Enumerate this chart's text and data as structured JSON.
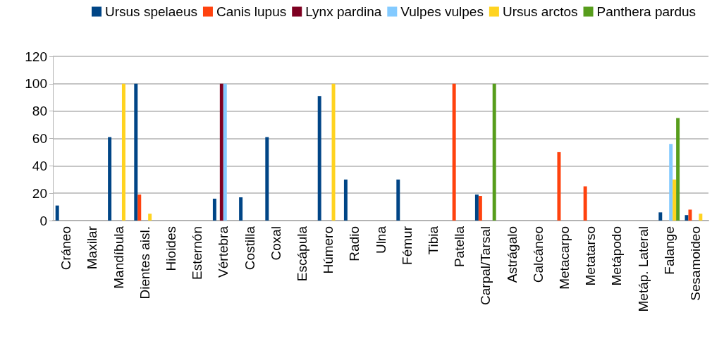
{
  "chart_data": {
    "type": "bar",
    "categories": [
      "Cráneo",
      "Maxilar",
      "Mandíbula",
      "Dientes aisl.",
      "Hioides",
      "Esternón",
      "Vértebra",
      "Costilla",
      "Coxal",
      "Escápula",
      "Húmero",
      "Radio",
      "Ulna",
      "Fémur",
      "Tibia",
      "Patella",
      "Carpal/Tarsal",
      "Astrágalo",
      "Calcáneo",
      "Metacarpo",
      "Metatarso",
      "Metápodo",
      "Metáp. Lateral",
      "Falange",
      "Sesamoideo"
    ],
    "series": [
      {
        "name": "Ursus spelaeus",
        "color": "#004586",
        "values": [
          11,
          null,
          61,
          100,
          null,
          null,
          16,
          17,
          61,
          null,
          91,
          30,
          null,
          30,
          null,
          null,
          19,
          null,
          null,
          null,
          null,
          null,
          null,
          6,
          4
        ]
      },
      {
        "name": "Canis lupus",
        "color": "#ff420e",
        "values": [
          null,
          null,
          null,
          19,
          null,
          null,
          null,
          null,
          null,
          null,
          null,
          null,
          null,
          null,
          null,
          100,
          18,
          null,
          null,
          50,
          25,
          null,
          null,
          null,
          8
        ]
      },
      {
        "name": "Lynx pardina",
        "color": "#7e0021",
        "values": [
          null,
          null,
          null,
          null,
          null,
          null,
          100,
          null,
          null,
          null,
          null,
          null,
          null,
          null,
          null,
          null,
          null,
          null,
          null,
          null,
          null,
          null,
          null,
          null,
          null
        ]
      },
      {
        "name": "Vulpes vulpes",
        "color": "#83caff",
        "values": [
          null,
          null,
          null,
          null,
          null,
          null,
          100,
          null,
          null,
          null,
          null,
          null,
          null,
          null,
          null,
          null,
          null,
          null,
          null,
          null,
          null,
          null,
          null,
          56,
          null
        ]
      },
      {
        "name": "Ursus arctos",
        "color": "#ffd320",
        "values": [
          null,
          null,
          100,
          5,
          null,
          null,
          null,
          null,
          null,
          null,
          100,
          null,
          null,
          null,
          null,
          null,
          null,
          null,
          null,
          null,
          null,
          null,
          null,
          30,
          5
        ]
      },
      {
        "name": "Panthera pardus",
        "color": "#579d1c",
        "values": [
          null,
          null,
          null,
          null,
          null,
          null,
          null,
          null,
          null,
          null,
          null,
          null,
          null,
          null,
          null,
          null,
          100,
          null,
          null,
          null,
          null,
          null,
          null,
          75,
          null
        ]
      }
    ],
    "ylim": [
      0,
      120
    ],
    "yticks": [
      0,
      20,
      40,
      60,
      80,
      100,
      120
    ],
    "grid": "y",
    "legend": "top"
  }
}
